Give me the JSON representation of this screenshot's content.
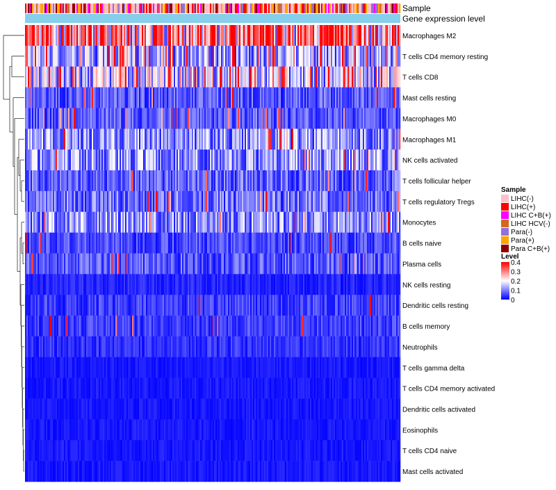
{
  "chart_data": {
    "type": "heatmap",
    "title": "",
    "annotation_tracks": [
      "Sample",
      "Gene expression level"
    ],
    "row_labels": [
      "Macrophages M2",
      "T cells CD4 memory resting",
      "T cells CD8",
      "Mast cells resting",
      "Macrophages M0",
      "Macrophages M1",
      "NK cells activated",
      "T cells follicular helper",
      "T cells regulatory  Tregs",
      "Monocytes",
      "B cells naive",
      "Plasma cells",
      "NK cells resting",
      "Dendritic cells resting",
      "B cells memory",
      "Neutrophils",
      "T cells gamma delta",
      "T cells CD4 memory activated",
      "Dendritic cells activated",
      "Eosinophils",
      "T cells CD4 naive",
      "Mast cells activated"
    ],
    "row_mean_level": [
      0.3,
      0.13,
      0.16,
      0.07,
      0.07,
      0.12,
      0.12,
      0.08,
      0.09,
      0.12,
      0.06,
      0.07,
      0.03,
      0.05,
      0.05,
      0.04,
      0.02,
      0.02,
      0.02,
      0.02,
      0.02,
      0.02
    ],
    "row_hot_fraction": [
      0.35,
      0.15,
      0.15,
      0.05,
      0.05,
      0.04,
      0.03,
      0.02,
      0.03,
      0.04,
      0.02,
      0.02,
      0.0,
      0.01,
      0.01,
      0.0,
      0.0,
      0.0,
      0.0,
      0.0,
      0.0,
      0.0
    ],
    "n_samples": 270,
    "legend_sample": {
      "title": "Sample",
      "entries": [
        {
          "label": "LIHC(-)",
          "color": "#ffc0cb"
        },
        {
          "label": "LIHC(+)",
          "color": "#ff0000"
        },
        {
          "label": "LIHC C+B(+)",
          "color": "#ff00ff"
        },
        {
          "label": "LIHC HCV(-)",
          "color": "#d2691e"
        },
        {
          "label": "Para(-)",
          "color": "#9370db"
        },
        {
          "label": "Para(+)",
          "color": "#ffa500"
        },
        {
          "label": "Para C+B(+)",
          "color": "#8b0000"
        }
      ]
    },
    "legend_level": {
      "title": "Level",
      "ticks": [
        "0.4",
        "0.3",
        "0.2",
        "0.1",
        "0"
      ],
      "range": [
        0,
        0.4
      ],
      "colors": [
        "#0000ff",
        "#ffffff",
        "#ff0000"
      ]
    },
    "expression_track_color": "#87ceeb"
  }
}
